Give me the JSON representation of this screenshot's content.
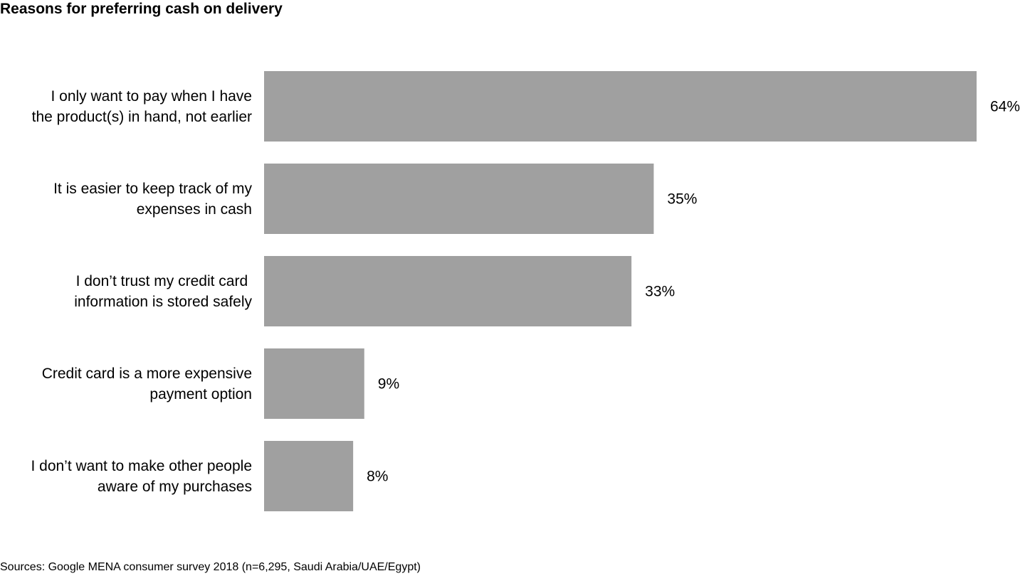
{
  "chart_data": {
    "type": "bar",
    "orientation": "horizontal",
    "title": "Reasons for preferring cash on delivery",
    "categories": [
      [
        "I only want to pay when I have",
        "the product(s) in hand, not earlier"
      ],
      [
        "It is easier to keep track of my",
        "expenses in cash"
      ],
      [
        "I don’t trust my credit card ",
        "information is stored safely"
      ],
      [
        "Credit card is a more expensive",
        "payment option"
      ],
      [
        "I don’t want to make other people",
        "aware of my purchases"
      ]
    ],
    "values": [
      64,
      35,
      33,
      9,
      8
    ],
    "value_labels": [
      "64%",
      "35%",
      "33%",
      "9%",
      "8%"
    ],
    "xlim": [
      0,
      64
    ],
    "unit": "%",
    "bar_color": "#a0a0a0",
    "grid": false,
    "legend": "none"
  },
  "footnote": "Sources: Google MENA consumer survey 2018 (n=6,295, Saudi Arabia/UAE/Egypt)"
}
